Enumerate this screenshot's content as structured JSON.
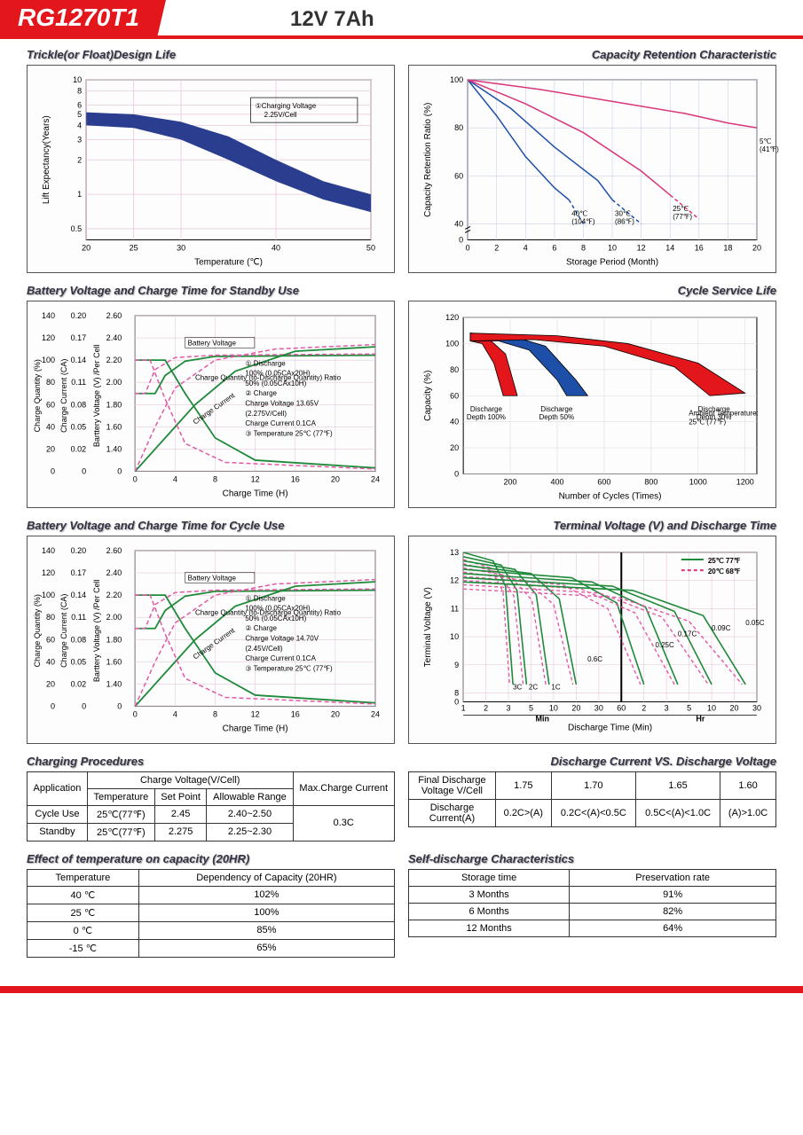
{
  "header": {
    "model": "RG1270T1",
    "spec": "12V  7Ah"
  },
  "colors": {
    "red": "#e3161b",
    "navy": "#2a3d8f",
    "blue": "#1e4fa8",
    "magenta": "#d8367a",
    "green": "#1e8a3a",
    "pink": "#e05aa5",
    "grid": "#666666",
    "pinkgrid": "#e8c8dc",
    "bluegrid": "#c8d0ea"
  },
  "chart_trickle": {
    "title": "Trickle(or Float)Design Life",
    "ylabel": "Lift  Expectancy(Years)",
    "xlabel": "Temperature (℃)",
    "yticks": [
      "0.5",
      "1",
      "2",
      "3",
      "4",
      "5",
      "6",
      "8",
      "10"
    ],
    "xticks": [
      "20",
      "25",
      "30",
      "40",
      "50"
    ],
    "legend": "①Charging Voltage\n2.25V/Cell",
    "band_upper": [
      [
        20,
        5.2
      ],
      [
        25,
        5.0
      ],
      [
        30,
        4.3
      ],
      [
        35,
        3.2
      ],
      [
        40,
        2.0
      ],
      [
        45,
        1.3
      ],
      [
        50,
        1.0
      ]
    ],
    "band_lower": [
      [
        20,
        4.0
      ],
      [
        25,
        3.8
      ],
      [
        30,
        3.0
      ],
      [
        35,
        2.0
      ],
      [
        40,
        1.3
      ],
      [
        45,
        0.9
      ],
      [
        50,
        0.7
      ]
    ]
  },
  "chart_retention": {
    "title": "Capacity Retention  Characteristic",
    "ylabel": "Capacity Retention Ratio (%)",
    "xlabel": "Storage Period (Month)",
    "yticks": [
      "0",
      "40",
      "60",
      "80",
      "100"
    ],
    "xticks": [
      "0",
      "2",
      "4",
      "6",
      "8",
      "10",
      "12",
      "14",
      "16",
      "18",
      "20"
    ],
    "curves": [
      {
        "label": "40℃\n(104℉)",
        "color": "#1e4fa8",
        "points": [
          [
            0,
            100
          ],
          [
            2,
            85
          ],
          [
            4,
            68
          ],
          [
            6,
            55
          ],
          [
            7,
            50
          ]
        ],
        "dash_after": 5,
        "dash_points": [
          [
            7,
            50
          ],
          [
            8,
            40
          ]
        ]
      },
      {
        "label": "30℃\n(86℉)",
        "color": "#1e4fa8",
        "points": [
          [
            0,
            100
          ],
          [
            3,
            88
          ],
          [
            6,
            72
          ],
          [
            9,
            58
          ],
          [
            10,
            50
          ]
        ],
        "dash_after": 9,
        "dash_points": [
          [
            10,
            50
          ],
          [
            12,
            40
          ]
        ]
      },
      {
        "label": "25℃\n(77℉)",
        "color": "#d8367a",
        "points": [
          [
            0,
            100
          ],
          [
            4,
            90
          ],
          [
            8,
            78
          ],
          [
            12,
            62
          ],
          [
            14,
            52
          ]
        ],
        "dash_after": 13,
        "dash_points": [
          [
            14,
            52
          ],
          [
            16,
            42
          ]
        ]
      },
      {
        "label": "5℃\n(41℉)",
        "color": "#d8367a",
        "points": [
          [
            0,
            100
          ],
          [
            5,
            96
          ],
          [
            10,
            91
          ],
          [
            15,
            86
          ],
          [
            18,
            82
          ],
          [
            20,
            80
          ]
        ]
      }
    ]
  },
  "chart_standby": {
    "title": "Battery Voltage and Charge Time for Standby Use",
    "y1label": "Charge Quantity (%)",
    "y2label": "Charge Current (CA)",
    "y3label": "Barttery Voltage (V) /Per Cell",
    "xlabel": "Charge Time (H)",
    "y1ticks": [
      "0",
      "20",
      "40",
      "60",
      "80",
      "100",
      "120",
      "140"
    ],
    "y2ticks": [
      "0",
      "0.02",
      "0.05",
      "0.08",
      "0.11",
      "0.14",
      "0.17",
      "0.20"
    ],
    "y3ticks": [
      "0",
      "1.40",
      "1.60",
      "1.80",
      "2.00",
      "2.20",
      "2.40",
      "2.60"
    ],
    "xticks": [
      "0",
      "4",
      "8",
      "12",
      "16",
      "20",
      "24"
    ],
    "legend_lines": [
      "① Discharge",
      "100% (0.05CAx20H)",
      "50% (0.05CAx10H)",
      "② Charge",
      "Charge Voltage 13.65V",
      "(2.275V/Cell)",
      "Charge Current 0.1CA",
      "③ Temperature 25℃ (77℉)"
    ],
    "label_bv": "Battery Voltage",
    "label_cq": "Charge Quantity (to-Discharge Quantity) Ratio",
    "label_cc": "Charge Current"
  },
  "chart_cycle_life": {
    "title": "Cycle Service Life",
    "ylabel": "Capacity (%)",
    "xlabel": "Number of Cycles (Times)",
    "yticks": [
      "0",
      "20",
      "40",
      "60",
      "80",
      "100",
      "120"
    ],
    "xticks": [
      "200",
      "400",
      "600",
      "800",
      "1000",
      "1200"
    ],
    "bands": [
      {
        "label": "Discharge\nDepth 100%",
        "color": "#e3161b",
        "upper": [
          [
            30,
            108
          ],
          [
            100,
            105
          ],
          [
            180,
            92
          ],
          [
            230,
            60
          ]
        ],
        "lower": [
          [
            30,
            102
          ],
          [
            80,
            100
          ],
          [
            130,
            85
          ],
          [
            170,
            60
          ]
        ]
      },
      {
        "label": "Discharge\nDepth 50%",
        "color": "#1e4fa8",
        "upper": [
          [
            30,
            108
          ],
          [
            200,
            106
          ],
          [
            350,
            98
          ],
          [
            480,
            72
          ],
          [
            530,
            60
          ]
        ],
        "lower": [
          [
            30,
            102
          ],
          [
            150,
            102
          ],
          [
            280,
            95
          ],
          [
            400,
            72
          ],
          [
            440,
            60
          ]
        ]
      },
      {
        "label": "Discharge\nDepth 30%",
        "color": "#e3161b",
        "upper": [
          [
            30,
            108
          ],
          [
            400,
            106
          ],
          [
            700,
            100
          ],
          [
            1000,
            85
          ],
          [
            1200,
            62
          ]
        ],
        "lower": [
          [
            30,
            102
          ],
          [
            300,
            103
          ],
          [
            600,
            98
          ],
          [
            900,
            82
          ],
          [
            1050,
            60
          ]
        ]
      }
    ],
    "ambient": "Ambient Temperature:\n25℃ (77℉)"
  },
  "chart_cycle_use": {
    "title": "Battery Voltage and Charge Time for Cycle Use",
    "legend_lines": [
      "① Discharge",
      "100% (0.05CAx20H)",
      "50% (0.05CAx10H)",
      "② Charge",
      "Charge Voltage 14.70V",
      "(2.45V/Cell)",
      "Charge Current 0.1CA",
      "③ Temperature 25℃ (77℉)"
    ]
  },
  "chart_terminal": {
    "title": "Terminal Voltage (V) and Discharge Time",
    "ylabel": "Terminal Voltage (V)",
    "xlabel": "Discharge Time (Min)",
    "yticks": [
      "0",
      "8",
      "9",
      "10",
      "11",
      "12",
      "13"
    ],
    "xsections": [
      "Min",
      "Hr"
    ],
    "xticks_min": [
      "1",
      "2",
      "3",
      "5",
      "10",
      "20",
      "30",
      "60"
    ],
    "xticks_hr": [
      "2",
      "3",
      "5",
      "10",
      "20",
      "30"
    ],
    "legend": [
      {
        "label": "25℃ 77℉",
        "color": "#1e8a3a",
        "dash": false
      },
      {
        "label": "20℃ 68℉",
        "color": "#d8367a",
        "dash": true
      }
    ],
    "rate_labels": [
      "3C",
      "2C",
      "1C",
      "0.6C",
      "0.25C",
      "0.17C",
      "0.09C",
      "0.05C"
    ]
  },
  "charging_procedures": {
    "title": "Charging Procedures",
    "headers": [
      "Application",
      "Charge Voltage(V/Cell)",
      "Max.Charge Current"
    ],
    "subheaders": [
      "Temperature",
      "Set Point",
      "Allowable Range"
    ],
    "rows": [
      [
        "Cycle Use",
        "25℃(77℉)",
        "2.45",
        "2.40~2.50"
      ],
      [
        "Standby",
        "25℃(77℉)",
        "2.275",
        "2.25~2.30"
      ]
    ],
    "max_current": "0.3C"
  },
  "discharge_vs_voltage": {
    "title": "Discharge Current VS. Discharge Voltage",
    "row1_label": "Final Discharge\nVoltage V/Cell",
    "row1": [
      "1.75",
      "1.70",
      "1.65",
      "1.60"
    ],
    "row2_label": "Discharge\nCurrent(A)",
    "row2": [
      "0.2C>(A)",
      "0.2C<(A)<0.5C",
      "0.5C<(A)<1.0C",
      "(A)>1.0C"
    ]
  },
  "temp_effect": {
    "title": "Effect of temperature on capacity (20HR)",
    "headers": [
      "Temperature",
      "Dependency of Capacity (20HR)"
    ],
    "rows": [
      [
        "40 ℃",
        "102%"
      ],
      [
        "25 ℃",
        "100%"
      ],
      [
        "0 ℃",
        "85%"
      ],
      [
        "-15 ℃",
        "65%"
      ]
    ]
  },
  "self_discharge": {
    "title": "Self-discharge Characteristics",
    "headers": [
      "Storage time",
      "Preservation rate"
    ],
    "rows": [
      [
        "3 Months",
        "91%"
      ],
      [
        "6 Months",
        "82%"
      ],
      [
        "12 Months",
        "64%"
      ]
    ]
  }
}
